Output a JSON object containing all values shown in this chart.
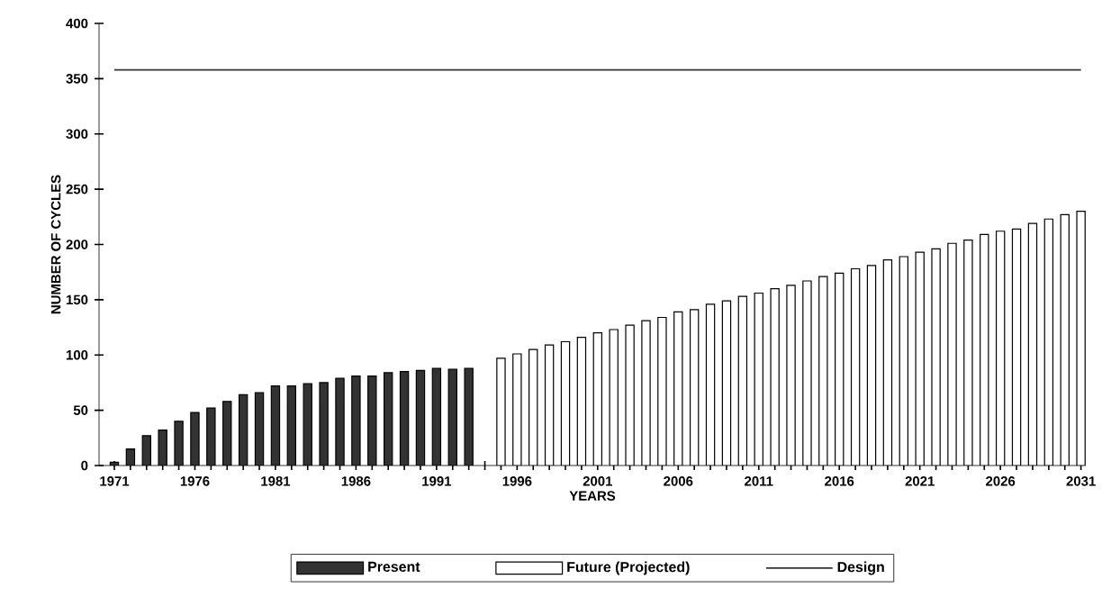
{
  "chart_data": {
    "type": "bar",
    "xlabel": "YEARS",
    "ylabel": "NUMBER OF CYCLES",
    "categories": [
      "1971",
      null,
      null,
      null,
      null,
      "1976",
      null,
      null,
      null,
      null,
      "1981",
      null,
      null,
      null,
      null,
      "1986",
      null,
      null,
      null,
      null,
      "1991",
      null,
      null,
      null,
      null,
      "1996",
      null,
      null,
      null,
      null,
      "2001",
      null,
      null,
      null,
      null,
      "2006",
      null,
      null,
      null,
      null,
      "2011",
      null,
      null,
      null,
      null,
      "2016",
      null,
      null,
      null,
      null,
      "2021",
      null,
      null,
      null,
      null,
      "2026",
      null,
      null,
      null,
      null,
      "2031"
    ],
    "series": [
      {
        "name": "Present",
        "color": "#333333",
        "values": [
          3,
          15,
          27,
          32,
          40,
          48,
          52,
          58,
          64,
          66,
          72,
          72,
          74,
          75,
          79,
          81,
          81,
          84,
          85,
          86,
          88,
          87,
          88,
          null,
          null,
          null,
          null,
          null,
          null,
          null,
          null,
          null,
          null,
          null,
          null,
          null,
          null,
          null,
          null,
          null,
          null,
          null,
          null,
          null,
          null,
          null,
          null,
          null,
          null,
          null,
          null,
          null,
          null,
          null,
          null,
          null,
          null,
          null,
          null,
          null,
          null
        ]
      },
      {
        "name": "Future (Projected)",
        "color": "#ffffff",
        "values": [
          null,
          null,
          null,
          null,
          null,
          null,
          null,
          null,
          null,
          null,
          null,
          null,
          null,
          null,
          null,
          null,
          null,
          null,
          null,
          null,
          null,
          null,
          null,
          null,
          97,
          101,
          105,
          109,
          112,
          116,
          120,
          123,
          127,
          131,
          134,
          139,
          141,
          146,
          149,
          153,
          156,
          160,
          163,
          167,
          171,
          174,
          178,
          181,
          186,
          189,
          193,
          196,
          201,
          204,
          209,
          212,
          214,
          219,
          223,
          227,
          230
        ]
      },
      {
        "name": "Design",
        "type": "line",
        "color": "#333333",
        "values": [
          358,
          358,
          358,
          358,
          358,
          358,
          358,
          358,
          358,
          358,
          358,
          358,
          358,
          358,
          358,
          358,
          358,
          358,
          358,
          358,
          358,
          358,
          358,
          358,
          358,
          358,
          358,
          358,
          358,
          358,
          358,
          358,
          358,
          358,
          358,
          358,
          358,
          358,
          358,
          358,
          358,
          358,
          358,
          358,
          358,
          358,
          358,
          358,
          358,
          358,
          358,
          358,
          358,
          358,
          358,
          358,
          358,
          358,
          358,
          358,
          358
        ]
      }
    ],
    "ylim": [
      0,
      400
    ],
    "yticks": [
      0,
      50,
      100,
      150,
      200,
      250,
      300,
      350,
      400
    ],
    "legend": "bottom"
  }
}
